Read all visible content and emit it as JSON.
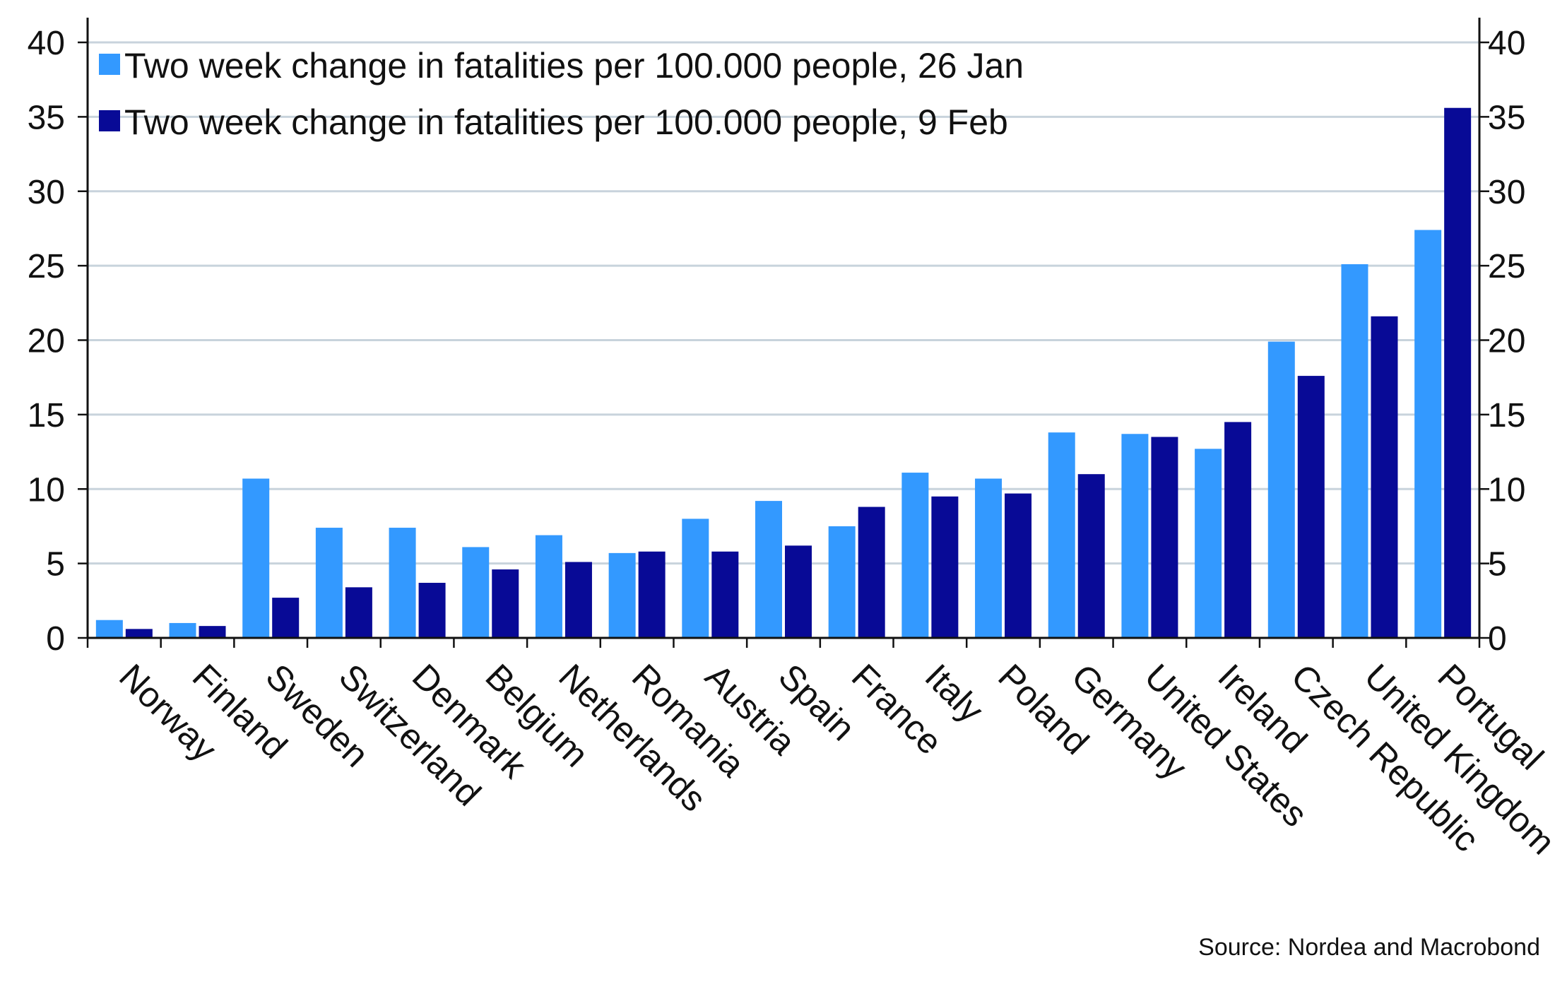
{
  "chart_data": {
    "type": "bar",
    "categories": [
      "Norway",
      "Finland",
      "Sweden",
      "Switzerland",
      "Denmark",
      "Belgium",
      "Netherlands",
      "Romania",
      "Austria",
      "Spain",
      "France",
      "Italy",
      "Poland",
      "Germany",
      "United States",
      "Ireland",
      "Czech Republic",
      "United Kingdom",
      "Portugal"
    ],
    "series": [
      {
        "name": "Two week change in fatalities per 100.000 people, 26 Jan",
        "color": "#3399ff",
        "values": [
          1.2,
          1.0,
          10.7,
          7.4,
          7.4,
          6.1,
          6.9,
          5.7,
          8.0,
          9.2,
          7.5,
          11.1,
          10.7,
          13.8,
          13.7,
          12.7,
          19.9,
          25.1,
          27.4
        ]
      },
      {
        "name": "Two week change in fatalities per 100.000 people, 9 Feb",
        "color": "#080a96",
        "values": [
          0.6,
          0.8,
          2.7,
          3.4,
          3.7,
          4.6,
          5.1,
          5.8,
          5.8,
          6.2,
          8.8,
          9.5,
          9.7,
          11.0,
          13.5,
          14.5,
          17.6,
          21.6,
          35.6
        ]
      }
    ],
    "ylim": [
      0,
      40
    ],
    "yticks": [
      0,
      5,
      10,
      15,
      20,
      25,
      30,
      35,
      40
    ],
    "ytick_labels": [
      "0",
      "5",
      "10",
      "15",
      "20",
      "25",
      "30",
      "35",
      "40"
    ],
    "grid": true,
    "dual_y_axis": true,
    "legend_position": "top-left",
    "title": "",
    "xlabel": "",
    "ylabel": "",
    "gridline_color": "#c8d3dc"
  },
  "source": "Source: Nordea and Macrobond"
}
